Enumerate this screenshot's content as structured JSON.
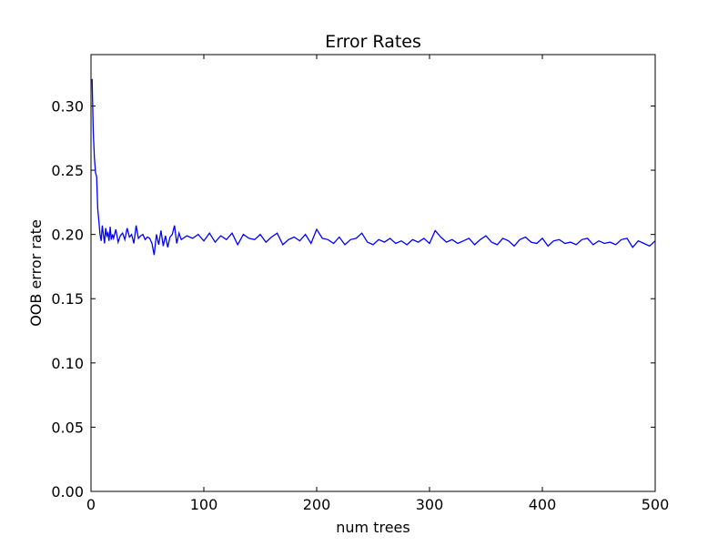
{
  "chart_data": {
    "type": "line",
    "title": "Error Rates",
    "xlabel": "num trees",
    "ylabel": "OOB error rate",
    "xlim": [
      0,
      500
    ],
    "ylim": [
      0,
      0.34
    ],
    "xticks": [
      0,
      100,
      200,
      300,
      400,
      500
    ],
    "xtick_labels": [
      "0",
      "100",
      "200",
      "300",
      "400",
      "500"
    ],
    "yticks": [
      0.0,
      0.05,
      0.1,
      0.15,
      0.2,
      0.25,
      0.3
    ],
    "ytick_labels": [
      "0.00",
      "0.05",
      "0.10",
      "0.15",
      "0.20",
      "0.25",
      "0.30"
    ],
    "grid": false,
    "series": [
      {
        "color": "#0000ff",
        "x": [
          1,
          2,
          3,
          4,
          5,
          6,
          7,
          8,
          9,
          10,
          11,
          12,
          13,
          14,
          15,
          16,
          17,
          18,
          19,
          20,
          22,
          24,
          26,
          28,
          30,
          32,
          34,
          36,
          38,
          40,
          42,
          44,
          46,
          48,
          50,
          52,
          54,
          56,
          58,
          60,
          62,
          64,
          66,
          68,
          70,
          72,
          74,
          76,
          78,
          80,
          85,
          90,
          95,
          100,
          105,
          110,
          115,
          120,
          125,
          130,
          135,
          140,
          145,
          150,
          155,
          160,
          165,
          170,
          175,
          180,
          185,
          190,
          195,
          200,
          205,
          210,
          215,
          220,
          225,
          230,
          235,
          240,
          245,
          250,
          255,
          260,
          265,
          270,
          275,
          280,
          285,
          290,
          295,
          300,
          305,
          310,
          315,
          320,
          325,
          330,
          335,
          340,
          345,
          350,
          355,
          360,
          365,
          370,
          375,
          380,
          385,
          390,
          395,
          400,
          405,
          410,
          415,
          420,
          425,
          430,
          435,
          440,
          445,
          450,
          455,
          460,
          465,
          470,
          475,
          480,
          485,
          490,
          495,
          500
        ],
        "y": [
          0.321,
          0.28,
          0.26,
          0.248,
          0.245,
          0.22,
          0.21,
          0.2,
          0.195,
          0.207,
          0.2,
          0.193,
          0.205,
          0.199,
          0.201,
          0.195,
          0.206,
          0.196,
          0.2,
          0.197,
          0.204,
          0.194,
          0.199,
          0.201,
          0.196,
          0.205,
          0.198,
          0.2,
          0.193,
          0.207,
          0.197,
          0.199,
          0.2,
          0.196,
          0.198,
          0.197,
          0.193,
          0.184,
          0.2,
          0.192,
          0.203,
          0.191,
          0.199,
          0.19,
          0.198,
          0.2,
          0.207,
          0.193,
          0.201,
          0.196,
          0.199,
          0.197,
          0.2,
          0.195,
          0.201,
          0.194,
          0.199,
          0.196,
          0.201,
          0.192,
          0.2,
          0.197,
          0.196,
          0.2,
          0.194,
          0.198,
          0.201,
          0.192,
          0.196,
          0.198,
          0.195,
          0.2,
          0.193,
          0.204,
          0.197,
          0.196,
          0.193,
          0.198,
          0.192,
          0.196,
          0.197,
          0.201,
          0.194,
          0.192,
          0.196,
          0.194,
          0.197,
          0.193,
          0.195,
          0.192,
          0.196,
          0.194,
          0.197,
          0.193,
          0.203,
          0.198,
          0.194,
          0.196,
          0.193,
          0.195,
          0.197,
          0.192,
          0.196,
          0.199,
          0.194,
          0.192,
          0.197,
          0.195,
          0.191,
          0.196,
          0.198,
          0.194,
          0.193,
          0.197,
          0.191,
          0.195,
          0.196,
          0.193,
          0.194,
          0.192,
          0.196,
          0.197,
          0.192,
          0.195,
          0.193,
          0.194,
          0.192,
          0.196,
          0.197,
          0.19,
          0.195,
          0.193,
          0.191,
          0.195
        ]
      }
    ]
  }
}
